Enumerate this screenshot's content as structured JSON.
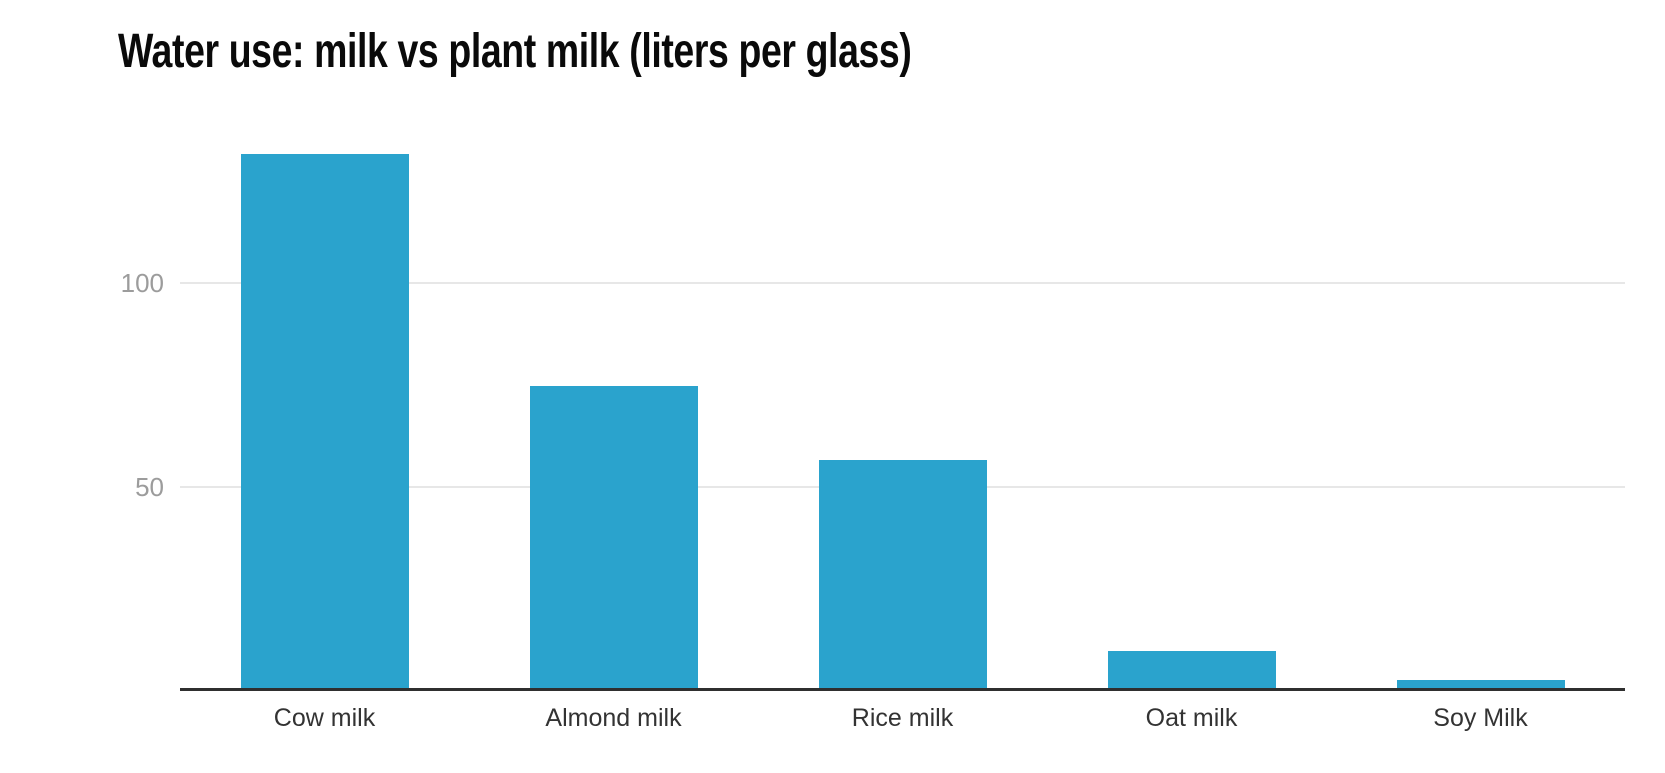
{
  "title": "Water use: milk vs plant milk (liters per glass)",
  "colors": {
    "bar": "#2aa3cd",
    "axis_line": "#2f2f2f",
    "gridline": "#e7e7e7",
    "y_tick_label": "#9c9c9c",
    "x_category_label": "#333333",
    "title_text": "#0a0a0a",
    "background": "#ffffff"
  },
  "chart_data": {
    "type": "bar",
    "title": "Water use: milk vs plant milk (liters per glass)",
    "categories": [
      "Cow milk",
      "Almond milk",
      "Rice milk",
      "Oat milk",
      "Soy Milk"
    ],
    "values": [
      131,
      74,
      56,
      9,
      2
    ],
    "units": "liters per glass",
    "xlabel": "",
    "ylabel": "",
    "yticks": [
      50,
      100
    ],
    "ylim": [
      0,
      137
    ],
    "grid": true,
    "legend_position": "none"
  }
}
